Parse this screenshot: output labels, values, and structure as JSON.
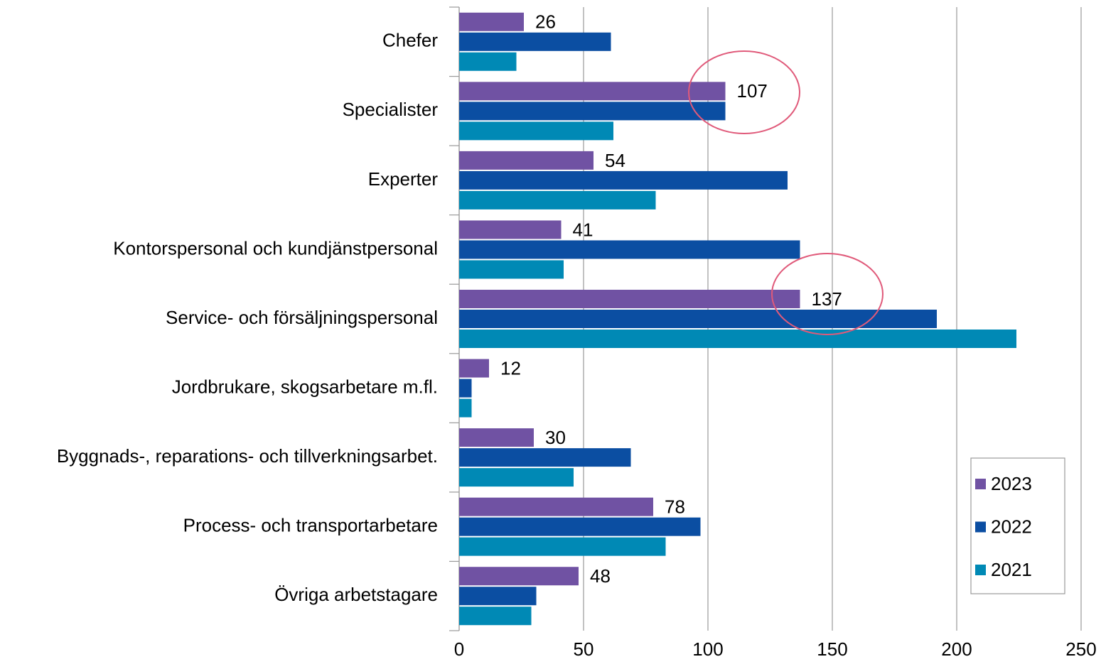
{
  "chart_data": {
    "type": "bar",
    "orientation": "horizontal",
    "categories": [
      "Chefer",
      "Specialister",
      "Experter",
      "Kontorspersonal och kundjänstpersonal",
      "Service- och försäljningspersonal",
      "Jordbrukare, skogsarbetare m.fl.",
      "Byggnads-, reparations- och tillverkningsarbet.",
      "Process- och transportarbetare",
      "Övriga arbetstagare"
    ],
    "series": [
      {
        "name": "2023",
        "color": "#7052a3",
        "values": [
          26,
          107,
          54,
          41,
          137,
          12,
          30,
          78,
          48
        ],
        "show_labels": true
      },
      {
        "name": "2022",
        "color": "#0b4ea2",
        "values": [
          61,
          107,
          132,
          137,
          192,
          5,
          69,
          97,
          31
        ],
        "show_labels": false
      },
      {
        "name": "2021",
        "color": "#0089b5",
        "values": [
          23,
          62,
          79,
          42,
          224,
          5,
          46,
          83,
          29
        ],
        "show_labels": false
      }
    ],
    "xlim": [
      0,
      250
    ],
    "xticks": [
      0,
      50,
      100,
      150,
      200,
      250
    ],
    "grid": true,
    "legend": "lower right"
  }
}
